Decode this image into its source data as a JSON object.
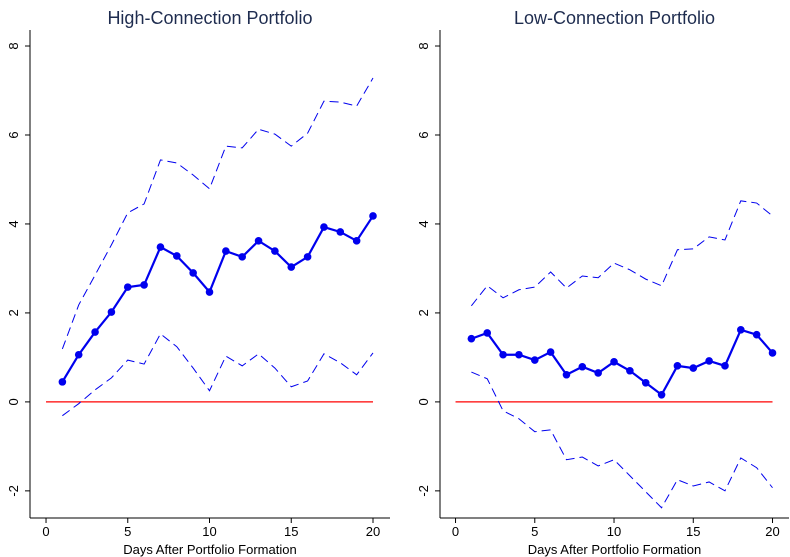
{
  "chart_data": [
    {
      "type": "line",
      "title": "High-Connection Portfolio",
      "xlabel": "Days After Portfolio Formation",
      "x": [
        1,
        2,
        3,
        4,
        5,
        6,
        7,
        8,
        9,
        10,
        11,
        12,
        13,
        14,
        15,
        16,
        17,
        18,
        19,
        20
      ],
      "series": [
        {
          "color": "#0000ee",
          "style": "solid",
          "markers": true,
          "values": [
            0.45,
            1.06,
            1.57,
            2.02,
            2.58,
            2.63,
            3.48,
            3.28,
            2.9,
            2.47,
            3.39,
            3.26,
            3.62,
            3.39,
            3.03,
            3.26,
            3.93,
            3.82,
            3.62,
            4.18
          ]
        },
        {
          "color": "#0000ee",
          "style": "dashed",
          "markers": false,
          "values": [
            1.19,
            2.18,
            2.85,
            3.53,
            4.25,
            4.45,
            5.44,
            5.37,
            5.1,
            4.79,
            5.75,
            5.71,
            6.13,
            6.02,
            5.75,
            6.04,
            6.76,
            6.74,
            6.65,
            7.28
          ]
        },
        {
          "color": "#0000ee",
          "style": "dashed",
          "markers": false,
          "values": [
            -0.31,
            -0.04,
            0.27,
            0.54,
            0.94,
            0.85,
            1.53,
            1.24,
            0.76,
            0.25,
            1.03,
            0.81,
            1.08,
            0.76,
            0.34,
            0.47,
            1.08,
            0.88,
            0.61,
            1.1
          ]
        }
      ],
      "hline": {
        "y": 0,
        "x": [
          0,
          20
        ],
        "color": "#ff0000"
      },
      "xlim": [
        -0.98,
        21.04
      ],
      "ylim": [
        -2.61,
        8.36
      ],
      "xticks": [
        0,
        5,
        10,
        15,
        20
      ],
      "yticks": [
        -2,
        0,
        2,
        4,
        6,
        8
      ]
    },
    {
      "type": "line",
      "title": "Low-Connection Portfolio",
      "xlabel": "Days After Portfolio Formation",
      "x": [
        1,
        2,
        3,
        4,
        5,
        6,
        7,
        8,
        9,
        10,
        11,
        12,
        13,
        14,
        15,
        16,
        17,
        18,
        19,
        20
      ],
      "series": [
        {
          "color": "#0000ee",
          "style": "solid",
          "markers": true,
          "values": [
            1.42,
            1.55,
            1.06,
            1.06,
            0.94,
            1.12,
            0.61,
            0.79,
            0.65,
            0.9,
            0.7,
            0.43,
            0.16,
            0.81,
            0.76,
            0.92,
            0.81,
            1.62,
            1.51,
            1.1
          ]
        },
        {
          "color": "#0000ee",
          "style": "dashed",
          "markers": false,
          "values": [
            2.16,
            2.61,
            2.34,
            2.52,
            2.58,
            2.92,
            2.56,
            2.83,
            2.79,
            3.12,
            2.97,
            2.76,
            2.61,
            3.42,
            3.44,
            3.71,
            3.64,
            4.52,
            4.47,
            4.18
          ]
        },
        {
          "color": "#0000ee",
          "style": "dashed",
          "markers": false,
          "values": [
            0.67,
            0.52,
            -0.2,
            -0.38,
            -0.67,
            -0.63,
            -1.3,
            -1.24,
            -1.44,
            -1.3,
            -1.66,
            -2.02,
            -2.38,
            -1.75,
            -1.89,
            -1.8,
            -2.0,
            -1.26,
            -1.48,
            -1.93
          ]
        }
      ],
      "hline": {
        "y": 0,
        "x": [
          0,
          20
        ],
        "color": "#ff0000"
      },
      "xlim": [
        -0.98,
        21.04
      ],
      "ylim": [
        -2.61,
        8.36
      ],
      "xticks": [
        0,
        5,
        10,
        15,
        20
      ],
      "yticks": [
        -2,
        0,
        2,
        4,
        6,
        8
      ]
    }
  ]
}
